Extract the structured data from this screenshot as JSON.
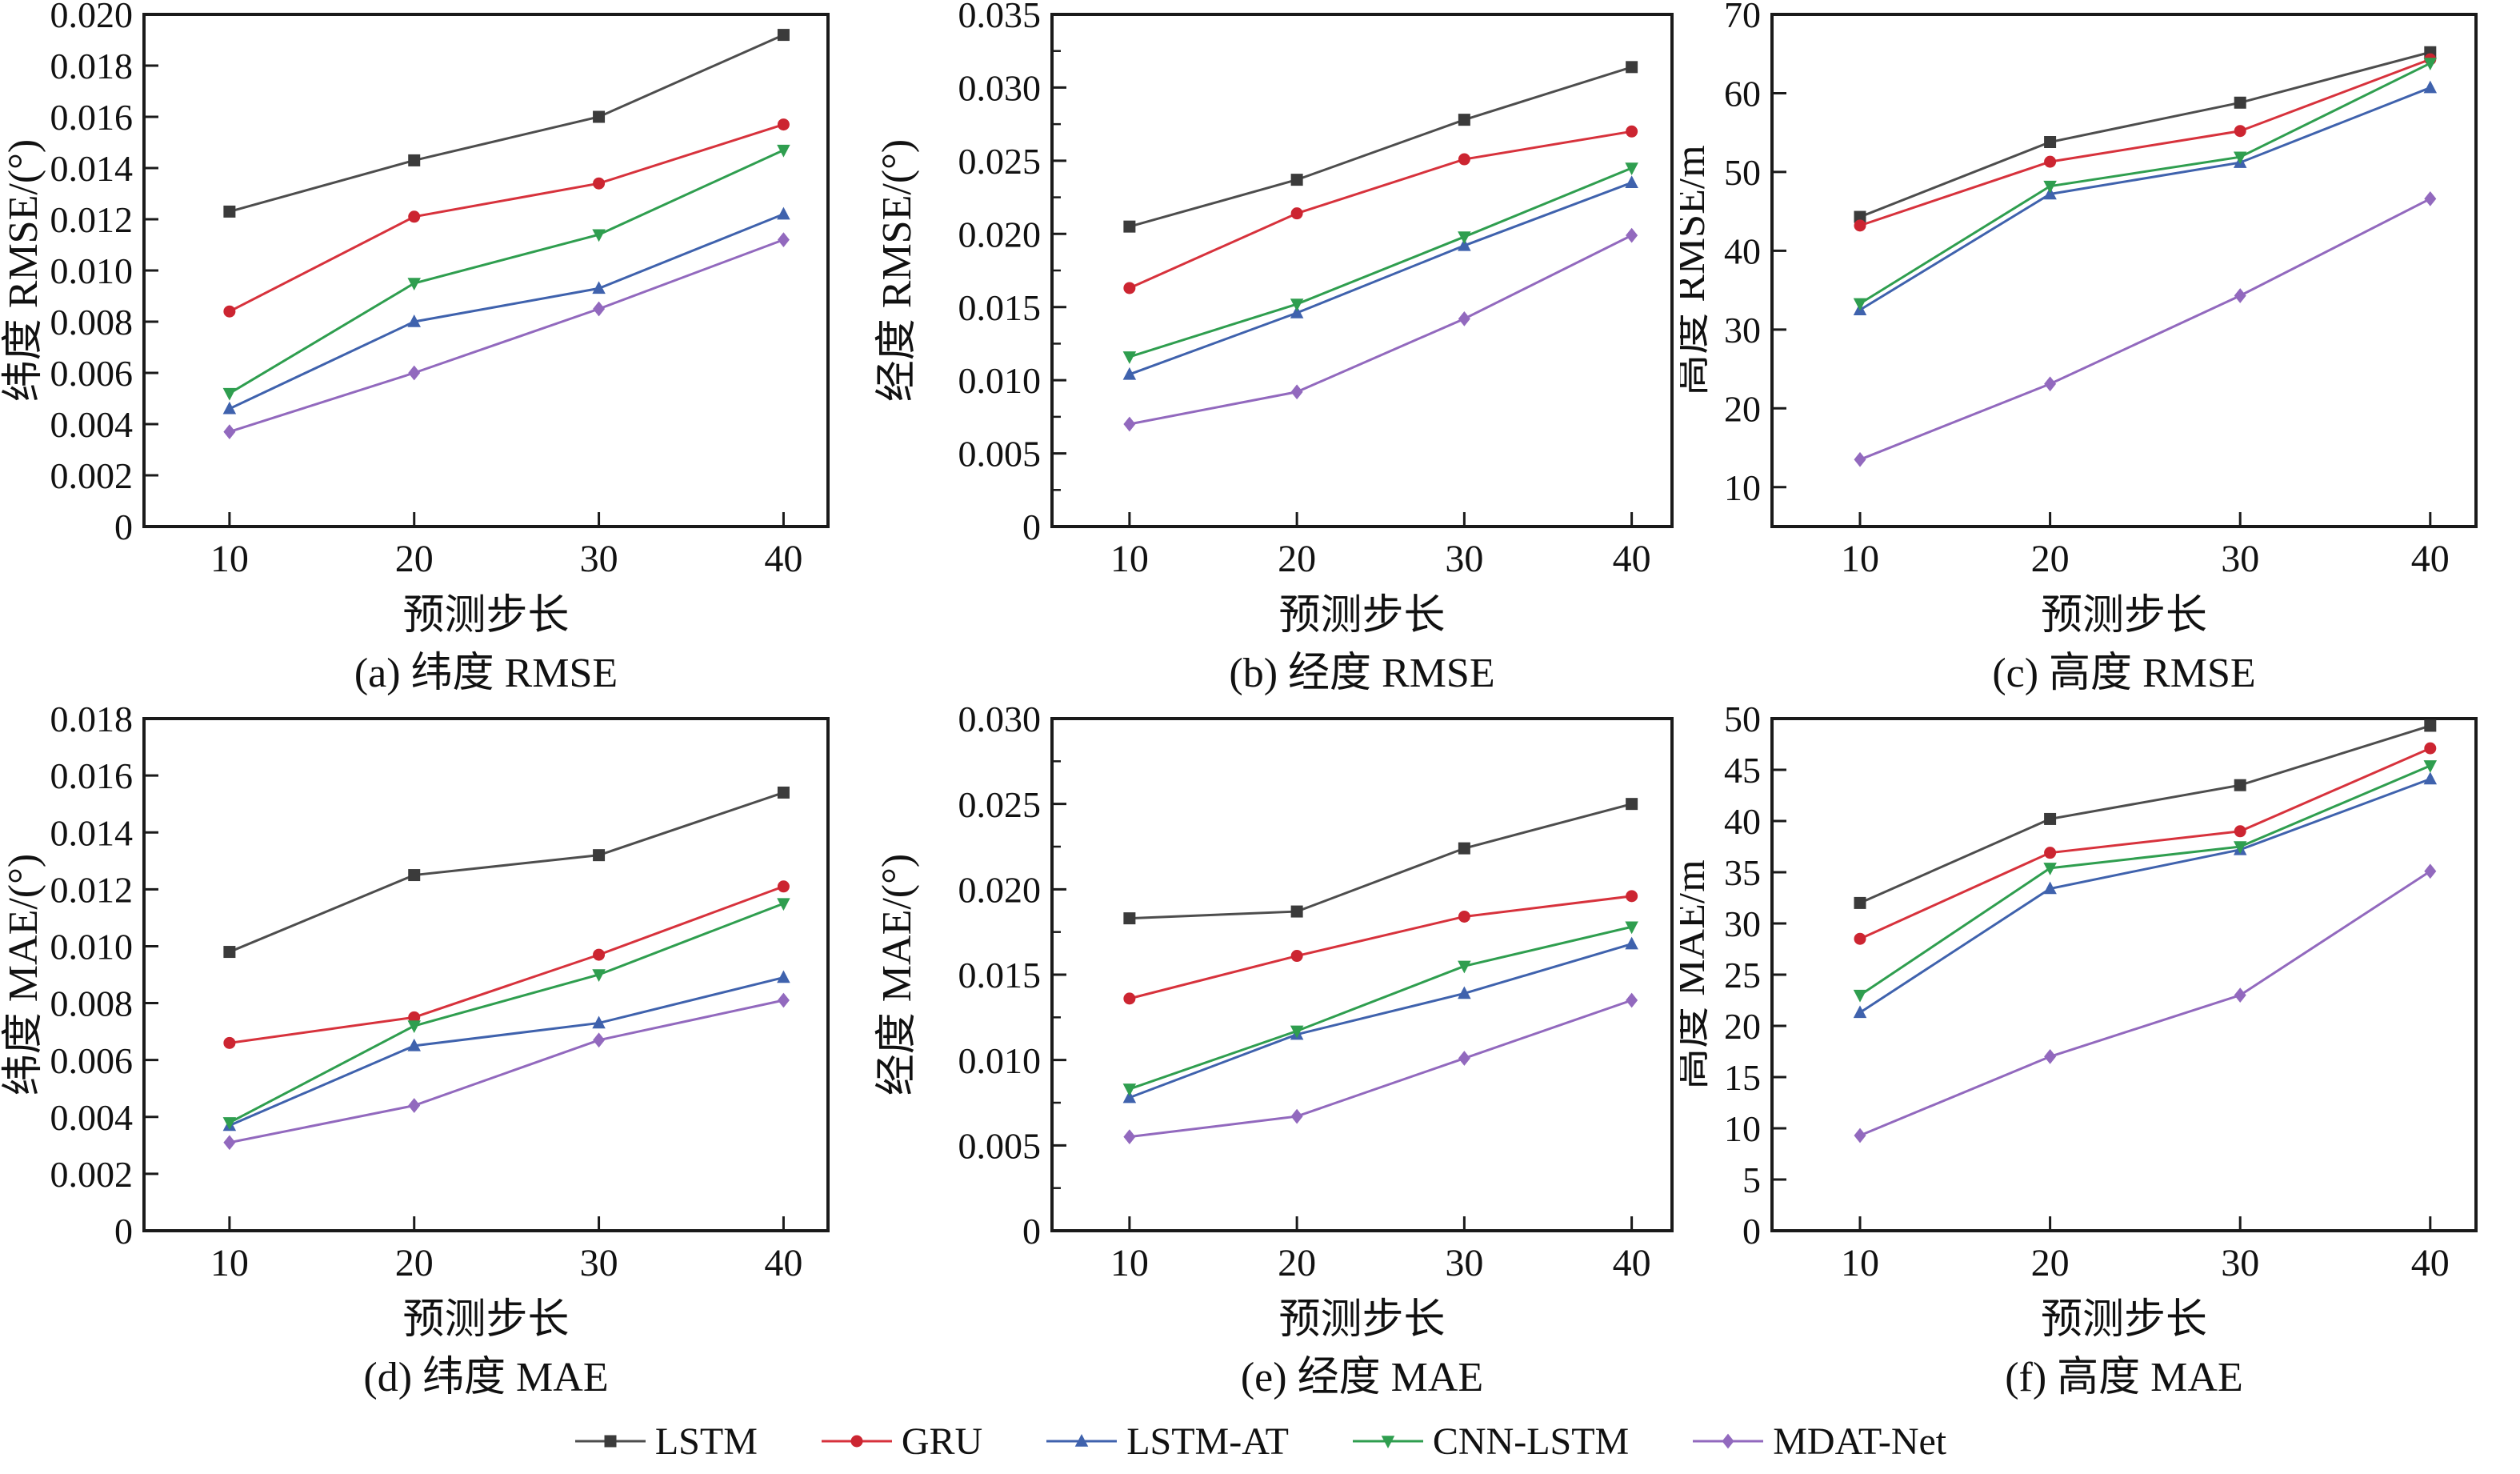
{
  "figure": {
    "background": "#ffffff",
    "x_label": "预测步长",
    "x_tick_labels": [
      "10",
      "20",
      "30",
      "40"
    ],
    "legend": [
      {
        "name": "LSTM",
        "color": "#4d4d4d",
        "marker_color": "#3b3b3b",
        "marker": "square"
      },
      {
        "name": "GRU",
        "color": "#d7323c",
        "marker_color": "#cc2531",
        "marker": "circle"
      },
      {
        "name": "LSTM-AT",
        "color": "#3f62ad",
        "marker_color": "#3f62ad",
        "marker": "triangle-up"
      },
      {
        "name": "CNN-LSTM",
        "color": "#2f9e4f",
        "marker_color": "#2f9e4f",
        "marker": "triangle-down"
      },
      {
        "name": "MDAT-Net",
        "color": "#9269be",
        "marker_color": "#9269be",
        "marker": "diamond"
      }
    ],
    "legend_position": "bottom"
  },
  "chart_data": [
    {
      "type": "line",
      "caption": "(a) 纬度 RMSE",
      "ylabel": "纬度 RMSE/(°)",
      "xlabel": "预测步长",
      "x": [
        10,
        20,
        30,
        40
      ],
      "ylim": [
        0,
        0.02
      ],
      "yticks": [
        0,
        0.002,
        0.004,
        0.006,
        0.008,
        0.01,
        0.012,
        0.014,
        0.016,
        0.018,
        0.02
      ],
      "ytick_labels": [
        "0",
        "0.002",
        "0.004",
        "0.006",
        "0.008",
        "0.010",
        "0.012",
        "0.014",
        "0.016",
        "0.018",
        "0.020"
      ],
      "minor_ticks": false,
      "grid": false,
      "frame": {
        "left": 180,
        "right": 1035,
        "title_x": 46
      },
      "series": [
        {
          "name": "LSTM",
          "values": [
            0.0123,
            0.0143,
            0.016,
            0.0192
          ]
        },
        {
          "name": "GRU",
          "values": [
            0.0084,
            0.0121,
            0.0134,
            0.0157
          ]
        },
        {
          "name": "LSTM-AT",
          "values": [
            0.0046,
            0.008,
            0.0093,
            0.0122
          ]
        },
        {
          "name": "CNN-LSTM",
          "values": [
            0.0052,
            0.0095,
            0.0114,
            0.0147
          ]
        },
        {
          "name": "MDAT-Net",
          "values": [
            0.0037,
            0.006,
            0.0085,
            0.0112
          ]
        }
      ]
    },
    {
      "type": "line",
      "caption": "(b) 经度 RMSE",
      "ylabel": "经度 RMSE/(°)",
      "xlabel": "预测步长",
      "x": [
        10,
        20,
        30,
        40
      ],
      "ylim": [
        0,
        0.035
      ],
      "yticks": [
        0,
        0.005,
        0.01,
        0.015,
        0.02,
        0.025,
        0.03,
        0.035
      ],
      "ytick_labels": [
        "0",
        "0.005",
        "0.010",
        "0.015",
        "0.020",
        "0.025",
        "0.030",
        "0.035"
      ],
      "minor_ticks": true,
      "grid": false,
      "frame": {
        "left": 265,
        "right": 1040,
        "title_x": 88
      },
      "series": [
        {
          "name": "LSTM",
          "values": [
            0.0205,
            0.0237,
            0.0278,
            0.0314
          ]
        },
        {
          "name": "GRU",
          "values": [
            0.0163,
            0.0214,
            0.0251,
            0.027
          ]
        },
        {
          "name": "LSTM-AT",
          "values": [
            0.0104,
            0.0146,
            0.0192,
            0.0235
          ]
        },
        {
          "name": "CNN-LSTM",
          "values": [
            0.0116,
            0.0152,
            0.0198,
            0.0245
          ]
        },
        {
          "name": "MDAT-Net",
          "values": [
            0.007,
            0.0092,
            0.0142,
            0.0199
          ]
        }
      ]
    },
    {
      "type": "line",
      "caption": "(c) 高度 RMSE",
      "ylabel": "高度 RMSE/m",
      "xlabel": "预测步长",
      "x": [
        10,
        20,
        30,
        40
      ],
      "ylim": [
        5,
        70
      ],
      "yticks": [
        10,
        20,
        30,
        40,
        50,
        60,
        70
      ],
      "ytick_labels": [
        "10",
        "20",
        "30",
        "40",
        "50",
        "60",
        "70"
      ],
      "minor_ticks": false,
      "grid": false,
      "frame": {
        "left": 115,
        "right": 995,
        "title_x": 30
      },
      "series": [
        {
          "name": "LSTM",
          "values": [
            44.3,
            53.8,
            58.8,
            65.2
          ]
        },
        {
          "name": "GRU",
          "values": [
            43.2,
            51.3,
            55.2,
            64.3
          ]
        },
        {
          "name": "LSTM-AT",
          "values": [
            32.5,
            47.2,
            51.2,
            60.7
          ]
        },
        {
          "name": "CNN-LSTM",
          "values": [
            33.3,
            48.2,
            51.9,
            63.8
          ]
        },
        {
          "name": "MDAT-Net",
          "values": [
            13.5,
            23.1,
            34.3,
            46.6
          ]
        }
      ]
    },
    {
      "type": "line",
      "caption": "(d) 纬度 MAE",
      "ylabel": "纬度 MAE/(°)",
      "xlabel": "预测步长",
      "x": [
        10,
        20,
        30,
        40
      ],
      "ylim": [
        0,
        0.018
      ],
      "yticks": [
        0,
        0.002,
        0.004,
        0.006,
        0.008,
        0.01,
        0.012,
        0.014,
        0.016,
        0.018
      ],
      "ytick_labels": [
        "0",
        "0.002",
        "0.004",
        "0.006",
        "0.008",
        "0.010",
        "0.012",
        "0.014",
        "0.016",
        "0.018"
      ],
      "minor_ticks": false,
      "grid": false,
      "frame": {
        "left": 180,
        "right": 1035,
        "title_x": 46
      },
      "series": [
        {
          "name": "LSTM",
          "values": [
            0.0098,
            0.0125,
            0.0132,
            0.0154
          ]
        },
        {
          "name": "GRU",
          "values": [
            0.0066,
            0.0075,
            0.0097,
            0.0121
          ]
        },
        {
          "name": "LSTM-AT",
          "values": [
            0.0037,
            0.0065,
            0.0073,
            0.0089
          ]
        },
        {
          "name": "CNN-LSTM",
          "values": [
            0.0038,
            0.0072,
            0.009,
            0.0115
          ]
        },
        {
          "name": "MDAT-Net",
          "values": [
            0.0031,
            0.0044,
            0.0067,
            0.0081
          ]
        }
      ]
    },
    {
      "type": "line",
      "caption": "(e) 经度 MAE",
      "ylabel": "经度 MAE/(°)",
      "xlabel": "预测步长",
      "x": [
        10,
        20,
        30,
        40
      ],
      "ylim": [
        0,
        0.03
      ],
      "yticks": [
        0,
        0.005,
        0.01,
        0.015,
        0.02,
        0.025,
        0.03
      ],
      "ytick_labels": [
        "0",
        "0.005",
        "0.010",
        "0.015",
        "0.020",
        "0.025",
        "0.030"
      ],
      "minor_ticks": true,
      "grid": false,
      "frame": {
        "left": 265,
        "right": 1040,
        "title_x": 88
      },
      "series": [
        {
          "name": "LSTM",
          "values": [
            0.0183,
            0.0187,
            0.0224,
            0.025
          ]
        },
        {
          "name": "GRU",
          "values": [
            0.0136,
            0.0161,
            0.0184,
            0.0196
          ]
        },
        {
          "name": "LSTM-AT",
          "values": [
            0.0078,
            0.0115,
            0.0139,
            0.0168
          ]
        },
        {
          "name": "CNN-LSTM",
          "values": [
            0.0083,
            0.0117,
            0.0155,
            0.0178
          ]
        },
        {
          "name": "MDAT-Net",
          "values": [
            0.0055,
            0.0067,
            0.0101,
            0.0135
          ]
        }
      ]
    },
    {
      "type": "line",
      "caption": "(f) 高度 MAE",
      "ylabel": "高度 MAE/m",
      "xlabel": "预测步长",
      "x": [
        10,
        20,
        30,
        40
      ],
      "ylim": [
        0,
        50
      ],
      "yticks": [
        0,
        5,
        10,
        15,
        20,
        25,
        30,
        35,
        40,
        45,
        50
      ],
      "ytick_labels": [
        "0",
        "5",
        "10",
        "15",
        "20",
        "25",
        "30",
        "35",
        "40",
        "45",
        "50"
      ],
      "minor_ticks": false,
      "grid": false,
      "frame": {
        "left": 115,
        "right": 995,
        "title_x": 30
      },
      "series": [
        {
          "name": "LSTM",
          "values": [
            32.0,
            40.2,
            43.5,
            49.3
          ]
        },
        {
          "name": "GRU",
          "values": [
            28.5,
            36.9,
            39.0,
            47.1
          ]
        },
        {
          "name": "LSTM-AT",
          "values": [
            21.3,
            33.4,
            37.2,
            44.1
          ]
        },
        {
          "name": "CNN-LSTM",
          "values": [
            23.0,
            35.4,
            37.5,
            45.4
          ]
        },
        {
          "name": "MDAT-Net",
          "values": [
            9.3,
            17.0,
            23.0,
            35.1
          ]
        }
      ]
    }
  ]
}
